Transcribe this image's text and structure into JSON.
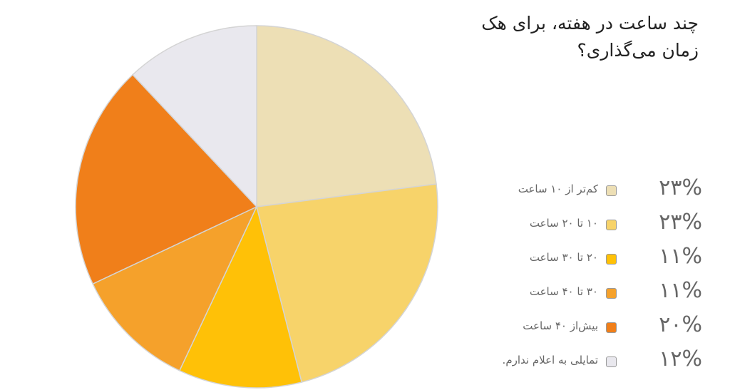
{
  "chart_data": {
    "type": "pie",
    "title": "چند ساعت در هفته، برای هک زمان می‌گذاری؟",
    "slices": [
      {
        "label": "کم‌تر از ۱۰ ساعت",
        "value": 23,
        "value_label": "۲۳%",
        "color": "#EDDFB5"
      },
      {
        "label": "۱۰ تا ۲۰ ساعت",
        "value": 23,
        "value_label": "۲۳%",
        "color": "#F7D36A"
      },
      {
        "label": "۲۰ تا ۳۰ ساعت",
        "value": 11,
        "value_label": "۱۱%",
        "color": "#FFC107"
      },
      {
        "label": "۳۰ تا ۴۰ ساعت",
        "value": 11,
        "value_label": "۱۱%",
        "color": "#F5A12B"
      },
      {
        "label": "بیش‌از ۴۰ ساعت",
        "value": 20,
        "value_label": "۲۰%",
        "color": "#F07F1A"
      },
      {
        "label": "تمایلی به اعلام ندارم.",
        "value": 12,
        "value_label": "۱۲%",
        "color": "#E9E8EE"
      }
    ],
    "start": "top",
    "direction": "clockwise",
    "legend": "right"
  }
}
